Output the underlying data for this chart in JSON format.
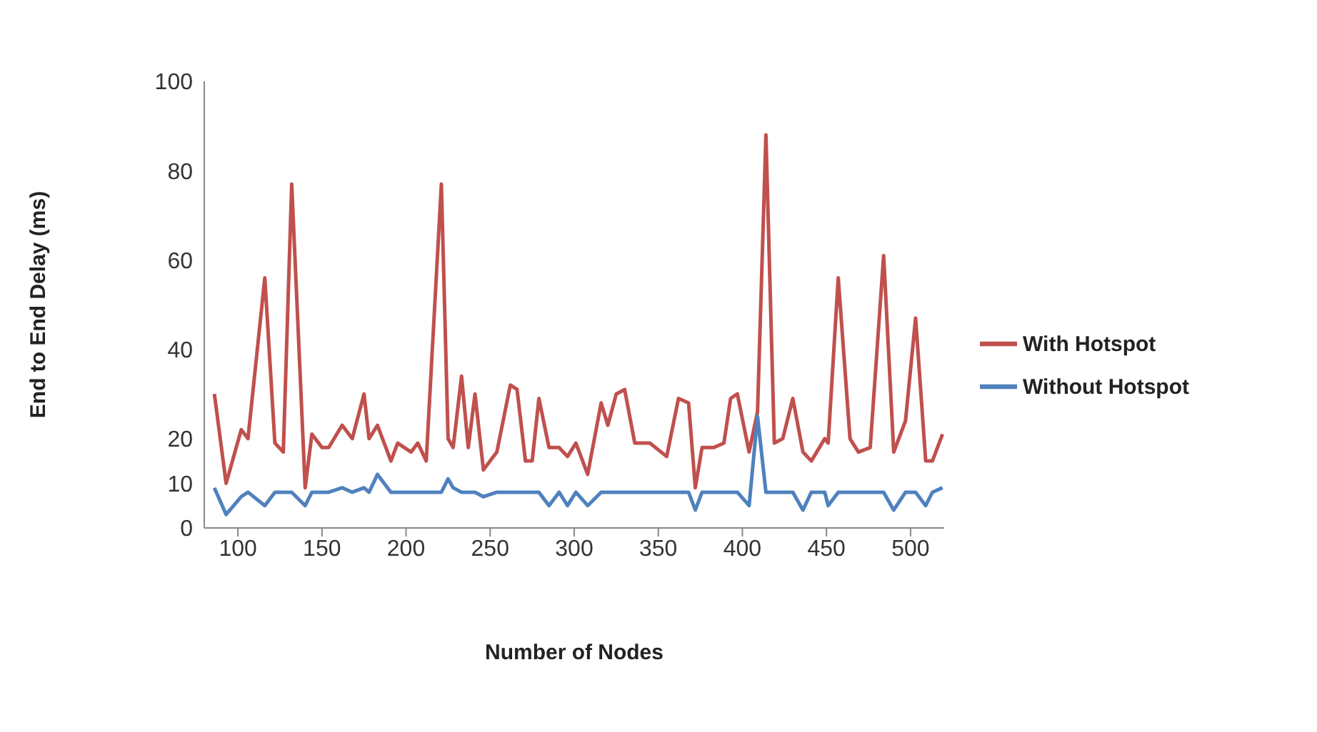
{
  "chart_data": {
    "type": "line",
    "xlabel": "Number of Nodes",
    "ylabel": "End to End Delay (ms)",
    "x": [
      86,
      93,
      102,
      106,
      116,
      122,
      127,
      132,
      140,
      144,
      150,
      154,
      162,
      168,
      175,
      178,
      183,
      191,
      195,
      203,
      207,
      212,
      221,
      225,
      228,
      233,
      237,
      241,
      246,
      254,
      262,
      266,
      271,
      275,
      279,
      285,
      291,
      296,
      301,
      308,
      316,
      320,
      325,
      330,
      336,
      345,
      355,
      362,
      368,
      372,
      376,
      383,
      389,
      393,
      397,
      404,
      409,
      414,
      419,
      424,
      430,
      436,
      441,
      449,
      451,
      457,
      464,
      469,
      476,
      484,
      490,
      497,
      503,
      509,
      513,
      519
    ],
    "series": [
      {
        "name": "With Hotspot",
        "color": "#c0504d",
        "values": [
          30,
          10,
          22,
          20,
          56,
          19,
          17,
          77,
          9,
          21,
          18,
          18,
          23,
          20,
          30,
          20,
          23,
          15,
          19,
          17,
          19,
          15,
          77,
          20,
          18,
          34,
          18,
          30,
          13,
          17,
          32,
          31,
          15,
          15,
          29,
          18,
          18,
          16,
          19,
          12,
          28,
          23,
          30,
          31,
          19,
          19,
          16,
          29,
          28,
          9,
          18,
          18,
          19,
          29,
          30,
          17,
          26,
          88,
          19,
          20,
          29,
          17,
          15,
          20,
          19,
          56,
          20,
          17,
          18,
          61,
          17,
          24,
          47,
          15,
          15,
          21
        ]
      },
      {
        "name": "Without Hotspot",
        "color": "#4f81bd",
        "values": [
          9,
          3,
          7,
          8,
          5,
          8,
          8,
          8,
          5,
          8,
          8,
          8,
          9,
          8,
          9,
          8,
          12,
          8,
          8,
          8,
          8,
          8,
          8,
          11,
          9,
          8,
          8,
          8,
          7,
          8,
          8,
          8,
          8,
          8,
          8,
          5,
          8,
          5,
          8,
          5,
          8,
          8,
          8,
          8,
          8,
          8,
          8,
          8,
          8,
          4,
          8,
          8,
          8,
          8,
          8,
          5,
          25,
          8,
          8,
          8,
          8,
          4,
          8,
          8,
          5,
          8,
          8,
          8,
          8,
          8,
          4,
          8,
          8,
          5,
          8,
          9
        ]
      }
    ],
    "xlim": [
      80,
      520
    ],
    "xticks": [
      100,
      150,
      200,
      250,
      300,
      350,
      400,
      450,
      500
    ],
    "ylim": [
      0,
      100
    ],
    "yticks": [
      0,
      10,
      20,
      40,
      60,
      80,
      100
    ],
    "legend": "right",
    "marker": "none",
    "line_style": "solid",
    "grid": false
  }
}
